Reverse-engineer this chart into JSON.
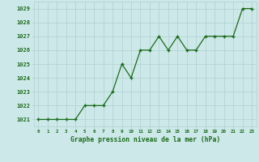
{
  "x": [
    0,
    1,
    2,
    3,
    4,
    5,
    6,
    7,
    8,
    9,
    10,
    11,
    12,
    13,
    14,
    15,
    16,
    17,
    18,
    19,
    20,
    21,
    22,
    23
  ],
  "y": [
    1021,
    1021,
    1021,
    1021,
    1021,
    1022,
    1022,
    1022,
    1023,
    1025,
    1024,
    1026,
    1026,
    1027,
    1026,
    1027,
    1026,
    1026,
    1027,
    1027,
    1027,
    1027,
    1029,
    1029
  ],
  "line_color": "#1a6b1a",
  "marker_color": "#1a6b1a",
  "background_color": "#cce8e8",
  "grid_color": "#b0d0d0",
  "xlabel": "Graphe pression niveau de la mer (hPa)",
  "xlabel_color": "#1a6b1a",
  "tick_label_color": "#1a6b1a",
  "ylim_min": 1020.5,
  "ylim_max": 1029.5,
  "xlim_min": -0.5,
  "xlim_max": 23.5,
  "yticks": [
    1021,
    1022,
    1023,
    1024,
    1025,
    1026,
    1027,
    1028,
    1029
  ],
  "xticks": [
    0,
    1,
    2,
    3,
    4,
    5,
    6,
    7,
    8,
    9,
    10,
    11,
    12,
    13,
    14,
    15,
    16,
    17,
    18,
    19,
    20,
    21,
    22,
    23
  ]
}
